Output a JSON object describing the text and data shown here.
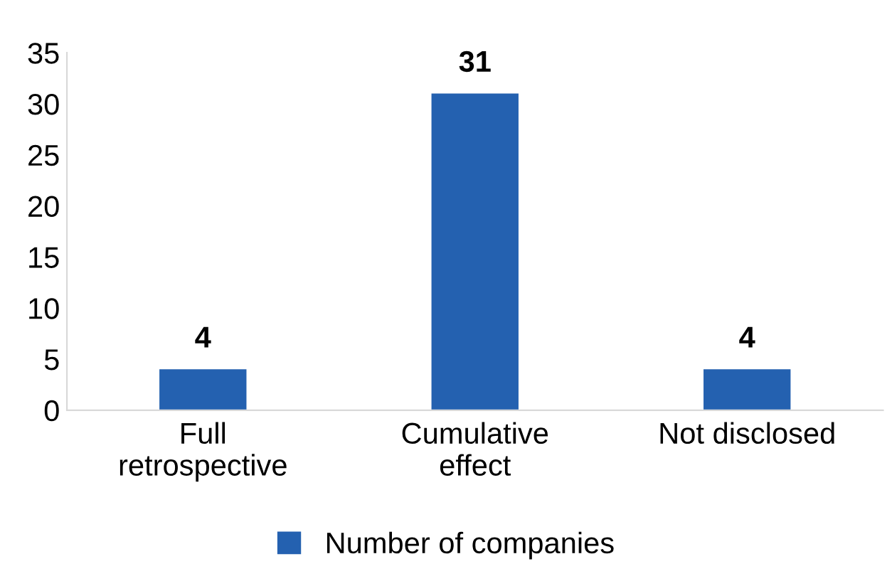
{
  "chart_data": {
    "type": "bar",
    "categories": [
      "Full\nretrospective",
      "Cumulative\neffect",
      "Not disclosed"
    ],
    "series": [
      {
        "name": "Number of companies",
        "color": "#2461b0",
        "values": [
          4,
          31,
          4
        ]
      }
    ],
    "ylim": [
      0,
      35
    ],
    "yticks": [
      0,
      5,
      10,
      15,
      20,
      25,
      30,
      35
    ],
    "data_labels": true,
    "grid": false,
    "legend": "bottom"
  }
}
